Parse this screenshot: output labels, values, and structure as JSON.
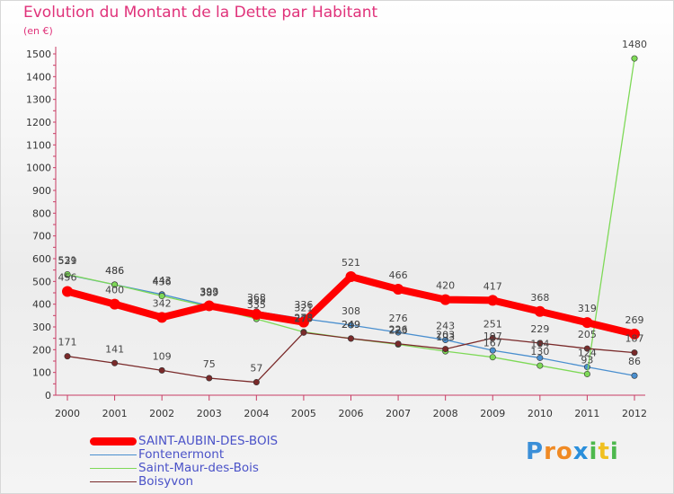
{
  "chart_data": {
    "type": "line",
    "title": "Evolution du Montant de la Dette par Habitant",
    "subtitle": "(en €)",
    "xlabel": "",
    "ylabel": "",
    "ylim": [
      0,
      1500
    ],
    "yticks": [
      0,
      100,
      200,
      300,
      400,
      500,
      600,
      700,
      800,
      900,
      1000,
      1100,
      1200,
      1300,
      1400,
      1500
    ],
    "categories": [
      "2000",
      "2001",
      "2002",
      "2003",
      "2004",
      "2005",
      "2006",
      "2007",
      "2008",
      "2009",
      "2010",
      "2011",
      "2012"
    ],
    "series": [
      {
        "name": "SAINT-AUBIN-DES-BOIS",
        "color": "#ff0000",
        "values": [
          456,
          400,
          342,
          393,
          355,
          321,
          521,
          466,
          420,
          417,
          368,
          319,
          269
        ],
        "labels": [
          "456",
          "400",
          "342",
          "393",
          "355",
          "321",
          "521",
          "466",
          "420",
          "417",
          "368",
          "319",
          "269"
        ]
      },
      {
        "name": "Fontenermont",
        "color": "#4a8fcf",
        "values": [
          529,
          486,
          443,
          393,
          368,
          336,
          308,
          276,
          243,
          197,
          164,
          124,
          86
        ],
        "labels": [
          "529",
          "486",
          "443",
          "393",
          "368",
          "336",
          "308",
          "276",
          "243",
          "197",
          "164",
          "124",
          "86"
        ]
      },
      {
        "name": "Saint-Maur-des-Bois",
        "color": "#7ed957",
        "values": [
          531,
          486,
          436,
          389,
          335,
          278,
          249,
          223,
          193,
          167,
          130,
          93,
          1480
        ],
        "labels": [
          "531",
          "486",
          "436",
          "389",
          "335",
          "278",
          "249",
          "223",
          "193",
          "167",
          "130",
          "93",
          "1480"
        ]
      },
      {
        "name": "Boisyvon",
        "color": "#7a2a2a",
        "values": [
          171,
          141,
          109,
          75,
          57,
          275,
          249,
          226,
          203,
          251,
          229,
          205,
          187
        ],
        "labels": [
          "171",
          "141",
          "109",
          "75",
          "57",
          "275",
          "249",
          "226",
          "203",
          "251",
          "229",
          "205",
          "187"
        ]
      }
    ],
    "legend_position": "bottom-left",
    "grid": false
  },
  "legend": {
    "items": [
      {
        "label": "SAINT-AUBIN-DES-BOIS",
        "color": "#ff0000"
      },
      {
        "label": "Fontenermont",
        "color": "#4a8fcf"
      },
      {
        "label": "Saint-Maur-des-Bois",
        "color": "#7ed957"
      },
      {
        "label": "Boisyvon",
        "color": "#7a2a2a"
      }
    ]
  },
  "brand": {
    "p": "P",
    "r": "r",
    "o": "o",
    "x": "x",
    "i1": "i",
    "t": "t",
    "i2": "i"
  }
}
